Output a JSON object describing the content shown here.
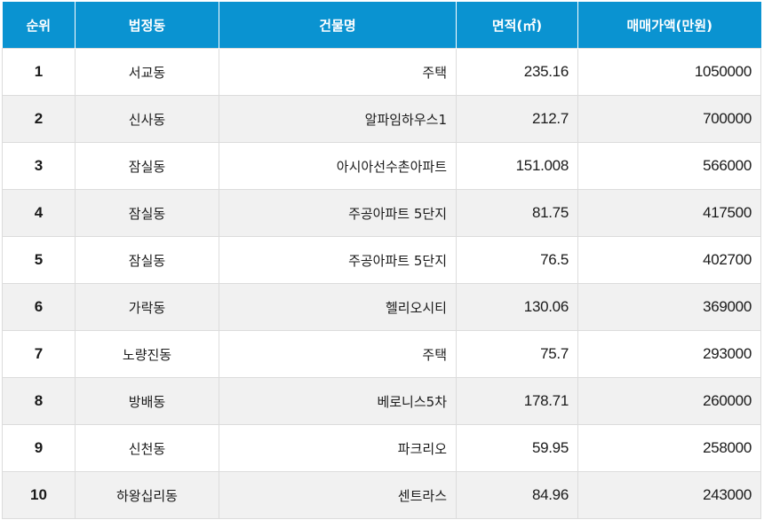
{
  "table": {
    "header_color": "#0a93d1",
    "columns": [
      {
        "key": "rank",
        "label": "순위"
      },
      {
        "key": "dong",
        "label": "법정동"
      },
      {
        "key": "building",
        "label": "건물명"
      },
      {
        "key": "area",
        "label": "면적(㎡)"
      },
      {
        "key": "price",
        "label": "매매가액(만원)"
      }
    ],
    "rows": [
      {
        "rank": "1",
        "dong": "서교동",
        "building": "주택",
        "area": "235.16",
        "price": "1050000"
      },
      {
        "rank": "2",
        "dong": "신사동",
        "building": "알파임하우스1",
        "area": "212.7",
        "price": "700000"
      },
      {
        "rank": "3",
        "dong": "잠실동",
        "building": "아시아선수촌아파트",
        "area": "151.008",
        "price": "566000"
      },
      {
        "rank": "4",
        "dong": "잠실동",
        "building": "주공아파트 5단지",
        "area": "81.75",
        "price": "417500"
      },
      {
        "rank": "5",
        "dong": "잠실동",
        "building": "주공아파트 5단지",
        "area": "76.5",
        "price": "402700"
      },
      {
        "rank": "6",
        "dong": "가락동",
        "building": "헬리오시티",
        "area": "130.06",
        "price": "369000"
      },
      {
        "rank": "7",
        "dong": "노량진동",
        "building": "주택",
        "area": "75.7",
        "price": "293000"
      },
      {
        "rank": "8",
        "dong": "방배동",
        "building": "베로니스5차",
        "area": "178.71",
        "price": "260000"
      },
      {
        "rank": "9",
        "dong": "신천동",
        "building": "파크리오",
        "area": "59.95",
        "price": "258000"
      },
      {
        "rank": "10",
        "dong": "하왕십리동",
        "building": "센트라스",
        "area": "84.96",
        "price": "243000"
      }
    ]
  }
}
